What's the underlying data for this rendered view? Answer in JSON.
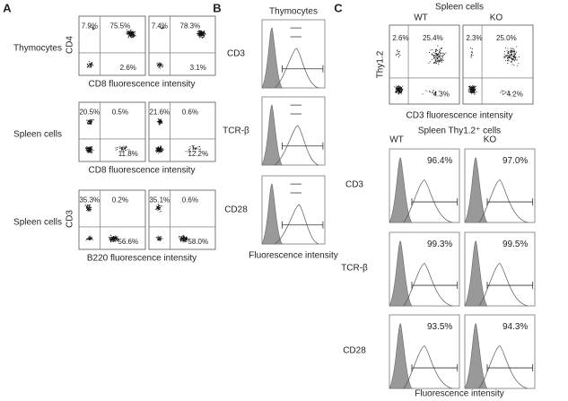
{
  "panels": [
    {
      "label": "A",
      "rows": [
        {
          "sample": "Thymocytes",
          "y_axis": "CD4",
          "x_axis": "CD8 fluorescence intensity",
          "plots": [
            [
              "7.9%",
              "75.5%",
              "2.6%"
            ],
            [
              "7.4%",
              "78.3%",
              "3.1%"
            ]
          ]
        },
        {
          "sample": "Spleen cells",
          "x_axis": "CD8 fluorescence intensity",
          "plots": [
            [
              "20.5%",
              "0.5%",
              "11.8%"
            ],
            [
              "21.6%",
              "0.6%",
              "12.2%"
            ]
          ]
        },
        {
          "sample": "Spleen cells",
          "y_axis": "CD3",
          "x_axis": "B220 fluorescence intensity",
          "plots": [
            [
              "35.3%",
              "0.2%",
              "56.6%"
            ],
            [
              "35.1%",
              "0.6%",
              "58.0%"
            ]
          ]
        }
      ]
    },
    {
      "label": "B",
      "title": "Thymocytes",
      "markers": [
        "CD3",
        "TCR-β",
        "CD28"
      ],
      "x_axis": "Fluorescence intensity"
    },
    {
      "label": "C",
      "title": "Spleen cells",
      "columns": [
        "WT",
        "KO"
      ],
      "y_axis": "Thy1.2",
      "x_axis": "CD3 fluorescence intensity",
      "plots": [
        [
          "2.6%",
          "25.4%",
          "4.3%"
        ],
        [
          "2.3%",
          "25.0%",
          "4.2%"
        ]
      ],
      "sub": {
        "title": "Spleen Thy1.2⁺ cells",
        "columns": [
          "WT",
          "KO"
        ],
        "x_axis": "Fluorescence intensity",
        "rows": [
          {
            "marker": "CD3",
            "values": [
              "96.4%",
              "97.0%"
            ]
          },
          {
            "marker": "TCR-β",
            "values": [
              "99.3%",
              "99.5%"
            ]
          },
          {
            "marker": "CD28",
            "values": [
              "93.5%",
              "94.3%"
            ]
          }
        ]
      }
    }
  ]
}
